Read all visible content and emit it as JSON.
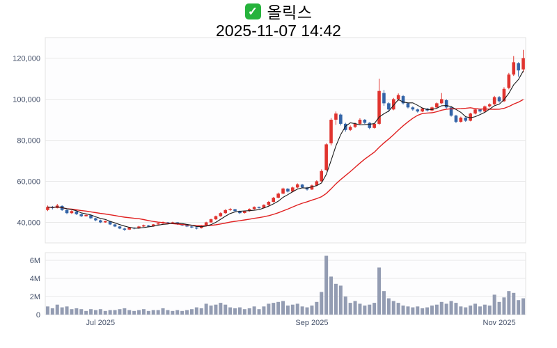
{
  "header": {
    "title": "올릭스",
    "datetime": "2025-11-07 14:42",
    "check_icon_glyph": "✓",
    "check_icon_color": "#26b33c"
  },
  "chart_data": {
    "type": "candlestick",
    "title": "올릭스",
    "subtitle": "2025-11-07 14:42",
    "candle_format": [
      "open",
      "high",
      "low",
      "close"
    ],
    "up_color": "#e0342f",
    "down_color": "#3465a8",
    "volume_color": "#939cb2",
    "ma_short_color": "#1a1a1a",
    "ma_long_color": "#e02020",
    "ma_short_period": 5,
    "ma_long_period": 20,
    "grid_color": "#e8e8e8",
    "axis_text_color": "#445069",
    "y_axis": {
      "range": [
        30000,
        130000
      ],
      "ticks": [
        40000,
        60000,
        80000,
        100000,
        120000
      ],
      "labels": [
        "40,000",
        "60,000",
        "80,000",
        "100,000",
        "120,000"
      ]
    },
    "volume_axis": {
      "unit": "millions",
      "range": [
        0,
        7.2
      ],
      "ticks": [
        0,
        2,
        4,
        6
      ],
      "labels": [
        "0",
        "2M",
        "4M",
        "6M"
      ]
    },
    "x_axis": {
      "ticks": [
        {
          "label": "Jul 2025",
          "index": 11
        },
        {
          "label": "Sep 2025",
          "index": 55
        },
        {
          "label": "Nov 2025",
          "index": 94
        }
      ]
    },
    "candles": [
      [
        46000,
        48200,
        45500,
        47500
      ],
      [
        47500,
        48000,
        46300,
        47000
      ],
      [
        47000,
        49000,
        46800,
        48200
      ],
      [
        48000,
        48300,
        45600,
        46000
      ],
      [
        46000,
        46300,
        44000,
        44500
      ],
      [
        44500,
        45900,
        44100,
        45500
      ],
      [
        45300,
        45500,
        43600,
        44000
      ],
      [
        44000,
        44300,
        42600,
        43000
      ],
      [
        43000,
        44000,
        42800,
        43600
      ],
      [
        43500,
        43700,
        41700,
        42000
      ],
      [
        42000,
        42300,
        40600,
        41000
      ],
      [
        41000,
        41300,
        39700,
        40000
      ],
      [
        40000,
        40900,
        39800,
        40600
      ],
      [
        40500,
        40700,
        38700,
        39000
      ],
      [
        39000,
        39200,
        37700,
        38000
      ],
      [
        38000,
        38200,
        36700,
        37000
      ],
      [
        37000,
        37400,
        35900,
        36400
      ],
      [
        36500,
        37800,
        36300,
        37500
      ],
      [
        37400,
        37600,
        36600,
        37000
      ],
      [
        37100,
        38300,
        36900,
        38000
      ],
      [
        38000,
        38900,
        37800,
        38600
      ],
      [
        38500,
        38700,
        37700,
        38000
      ],
      [
        38100,
        39200,
        37900,
        39000
      ],
      [
        39000,
        39800,
        38800,
        39500
      ],
      [
        39500,
        40400,
        39300,
        40100
      ],
      [
        40000,
        40200,
        39200,
        39500
      ],
      [
        39500,
        40300,
        39300,
        40000
      ],
      [
        40000,
        40100,
        38800,
        39000
      ],
      [
        39000,
        39200,
        38200,
        38500
      ],
      [
        38500,
        38700,
        37700,
        38000
      ],
      [
        38000,
        38200,
        37200,
        37500
      ],
      [
        37500,
        37700,
        36600,
        37000
      ],
      [
        37200,
        38700,
        37000,
        38500
      ],
      [
        38600,
        40300,
        38400,
        40000
      ],
      [
        40000,
        41800,
        39800,
        41500
      ],
      [
        41500,
        43300,
        41200,
        43000
      ],
      [
        43000,
        44900,
        42700,
        44500
      ],
      [
        44500,
        46400,
        44200,
        46000
      ],
      [
        46000,
        47000,
        45600,
        46500
      ],
      [
        46400,
        46600,
        45100,
        45500
      ],
      [
        45500,
        45700,
        44100,
        44500
      ],
      [
        44600,
        45700,
        44300,
        45500
      ],
      [
        45500,
        46800,
        45200,
        46500
      ],
      [
        46500,
        47800,
        46200,
        47500
      ],
      [
        47500,
        47700,
        46700,
        47000
      ],
      [
        47000,
        48800,
        46800,
        48500
      ],
      [
        48500,
        50400,
        48200,
        50000
      ],
      [
        50000,
        52400,
        49700,
        52000
      ],
      [
        52000,
        54500,
        51700,
        54000
      ],
      [
        54000,
        56900,
        53700,
        56500
      ],
      [
        56400,
        56700,
        54600,
        55000
      ],
      [
        55000,
        57400,
        54700,
        57000
      ],
      [
        57000,
        59000,
        56600,
        58500
      ],
      [
        58400,
        58700,
        56600,
        57000
      ],
      [
        57000,
        57300,
        55500,
        56000
      ],
      [
        56000,
        58400,
        55800,
        58000
      ],
      [
        58000,
        60500,
        57700,
        60000
      ],
      [
        60000,
        65800,
        59700,
        65000
      ],
      [
        65500,
        78500,
        65000,
        78000
      ],
      [
        78500,
        90800,
        77500,
        90000
      ],
      [
        90000,
        94000,
        87500,
        93000
      ],
      [
        92500,
        93000,
        87200,
        88000
      ],
      [
        88000,
        88500,
        84200,
        85000
      ],
      [
        85000,
        87200,
        84500,
        86500
      ],
      [
        86500,
        88600,
        86000,
        88000
      ],
      [
        88000,
        90700,
        87600,
        90000
      ],
      [
        90000,
        90300,
        87900,
        88500
      ],
      [
        88500,
        88800,
        85400,
        86000
      ],
      [
        86000,
        88400,
        85700,
        88000
      ],
      [
        88000,
        110000,
        87500,
        104000
      ],
      [
        103000,
        104500,
        96800,
        98000
      ],
      [
        98000,
        98500,
        93800,
        95000
      ],
      [
        95000,
        100600,
        94600,
        100000
      ],
      [
        100000,
        102800,
        99200,
        102000
      ],
      [
        101500,
        102000,
        97400,
        98000
      ],
      [
        98000,
        98300,
        95500,
        96000
      ],
      [
        96000,
        96500,
        94400,
        95000
      ],
      [
        95000,
        95400,
        93500,
        94000
      ],
      [
        94000,
        95900,
        93700,
        95500
      ],
      [
        95400,
        95700,
        94000,
        94500
      ],
      [
        94500,
        96400,
        94100,
        96000
      ],
      [
        96000,
        98400,
        95600,
        98000
      ],
      [
        98000,
        103000,
        97600,
        100000
      ],
      [
        99500,
        100000,
        95400,
        96000
      ],
      [
        96000,
        96300,
        91500,
        92000
      ],
      [
        92000,
        92400,
        88300,
        89000
      ],
      [
        89000,
        91500,
        88600,
        91000
      ],
      [
        91000,
        91200,
        89000,
        89500
      ],
      [
        89500,
        93400,
        89200,
        93000
      ],
      [
        93000,
        95400,
        92600,
        95000
      ],
      [
        95000,
        95200,
        93300,
        94000
      ],
      [
        94000,
        96900,
        93700,
        96500
      ],
      [
        96500,
        98000,
        96000,
        97500
      ],
      [
        97500,
        101600,
        97100,
        101000
      ],
      [
        101000,
        101500,
        98300,
        99000
      ],
      [
        99000,
        105800,
        98600,
        105000
      ],
      [
        105500,
        112800,
        104800,
        112000
      ],
      [
        112000,
        121000,
        111300,
        118000
      ],
      [
        117500,
        118000,
        111000,
        114000
      ],
      [
        114500,
        124000,
        113000,
        120000
      ]
    ],
    "volumes_millions": [
      0.9,
      0.7,
      1.1,
      0.8,
      0.9,
      0.6,
      0.7,
      0.6,
      0.4,
      0.6,
      0.5,
      0.6,
      0.4,
      0.5,
      0.5,
      0.6,
      0.7,
      0.5,
      0.4,
      0.5,
      0.6,
      0.4,
      0.5,
      0.5,
      0.7,
      0.5,
      0.4,
      0.5,
      0.4,
      0.5,
      0.6,
      0.8,
      0.7,
      1.2,
      1.0,
      1.1,
      1.3,
      1.1,
      0.8,
      0.7,
      0.8,
      0.6,
      0.7,
      0.9,
      0.6,
      0.9,
      1.2,
      1.3,
      1.4,
      1.5,
      1.0,
      1.1,
      1.2,
      0.9,
      0.8,
      1.0,
      1.4,
      2.5,
      6.5,
      4.2,
      3.4,
      3.2,
      2.0,
      1.3,
      1.5,
      1.2,
      1.0,
      1.1,
      1.3,
      5.2,
      2.6,
      1.8,
      1.5,
      1.3,
      1.0,
      0.9,
      0.8,
      0.9,
      0.7,
      0.8,
      1.0,
      1.1,
      1.4,
      1.2,
      1.5,
      1.3,
      0.9,
      0.8,
      1.0,
      1.2,
      0.9,
      1.1,
      1.0,
      2.2,
      1.4,
      1.9,
      2.6,
      2.4,
      1.6,
      1.8
    ]
  }
}
